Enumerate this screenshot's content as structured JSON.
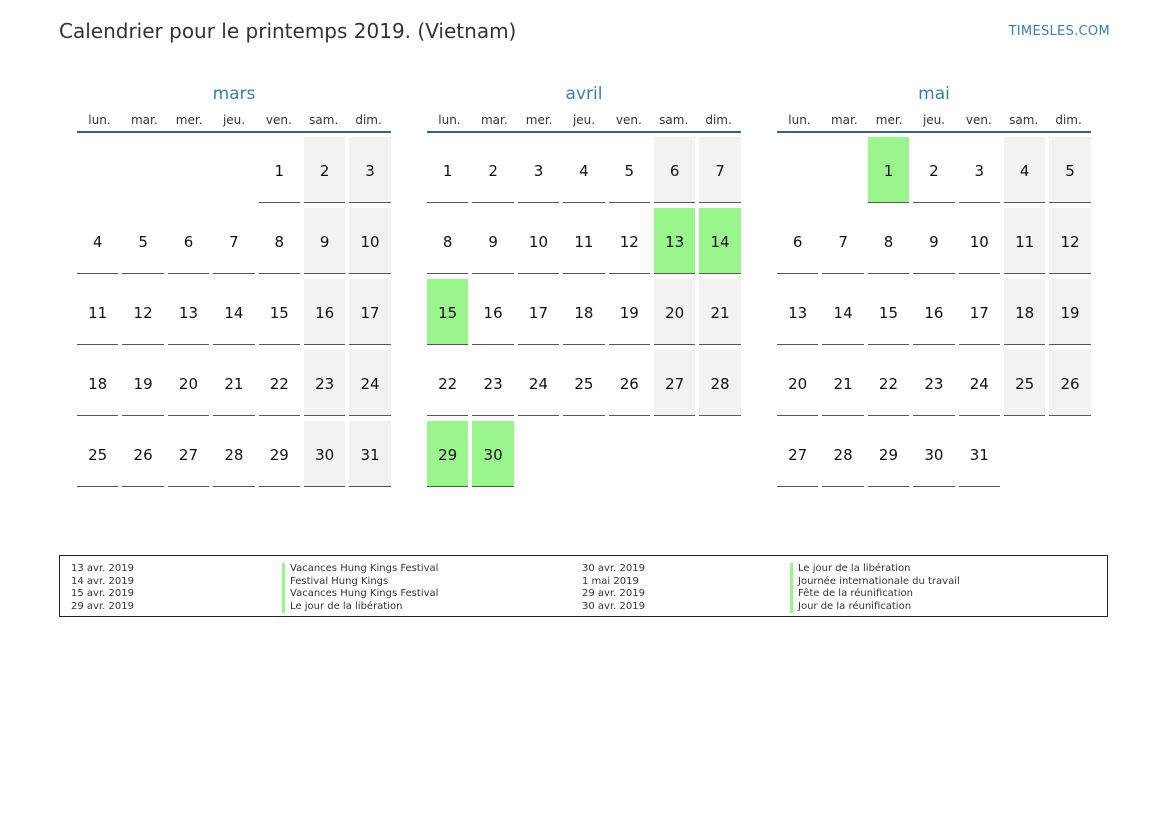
{
  "header": {
    "title": "Calendrier pour le printemps 2019. (Vietnam)",
    "brand": "TIMESLES.COM"
  },
  "colors": {
    "accent": "#3a7db3",
    "holiday": "#9af58c",
    "weekend": "#f2f2f2"
  },
  "weekdays": [
    "lun.",
    "mar.",
    "mer.",
    "jeu.",
    "ven.",
    "sam.",
    "dim."
  ],
  "months": [
    {
      "name": "mars",
      "offset": 4,
      "days": 31,
      "holidays": []
    },
    {
      "name": "avril",
      "offset": 0,
      "days": 30,
      "holidays": [
        13,
        14,
        15,
        29,
        30
      ]
    },
    {
      "name": "mai",
      "offset": 2,
      "days": 31,
      "holidays": [
        1
      ]
    }
  ],
  "legend": {
    "left": [
      {
        "date": "13 avr. 2019",
        "name": "Vacances Hung Kings Festival"
      },
      {
        "date": "14 avr. 2019",
        "name": "Festival Hung Kings"
      },
      {
        "date": "15 avr. 2019",
        "name": "Vacances Hung Kings Festival"
      },
      {
        "date": "29 avr. 2019",
        "name": "Le jour de la libération"
      }
    ],
    "right": [
      {
        "date": "30 avr. 2019",
        "name": "Le jour de la libération"
      },
      {
        "date": "1 mai 2019",
        "name": "Journée internationale du travail"
      },
      {
        "date": "29 avr. 2019",
        "name": "Fête de la réunification"
      },
      {
        "date": "30 avr. 2019",
        "name": "Jour de la réunification"
      }
    ]
  }
}
